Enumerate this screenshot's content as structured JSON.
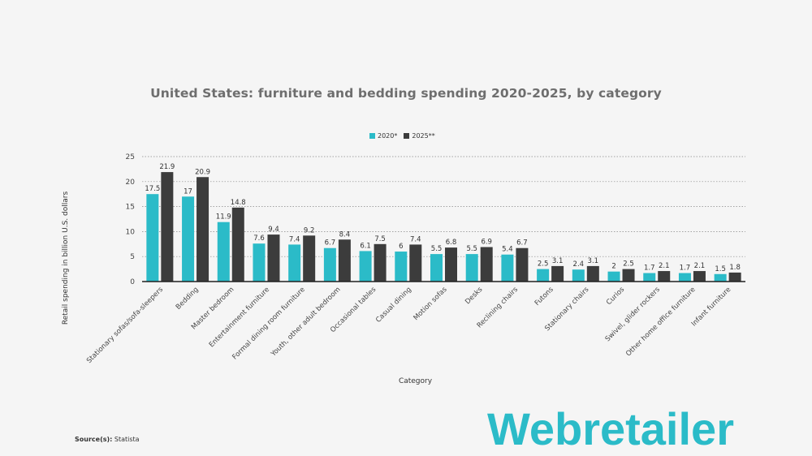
{
  "title": "United States: furniture and bedding spending 2020-2025, by category",
  "legend": [
    "2020*",
    "2025**"
  ],
  "source_label": "Source(s):",
  "source_value": "Statista",
  "logo_text": "Webretailer",
  "colors": {
    "series1": "#2bbbc8",
    "series2": "#3c3c3c",
    "logo": "#2bbbc8"
  },
  "chart_data": {
    "type": "bar",
    "title": "United States: furniture and bedding spending 2020-2025, by category",
    "xlabel": "Category",
    "ylabel": "Retail spending in billion U.S. dollars",
    "ylim": [
      0,
      25
    ],
    "yticks": [
      0,
      5,
      10,
      15,
      20,
      25
    ],
    "grid": true,
    "legend_position": "top-center",
    "categories": [
      "Stationary sofas/sofa-sleepers",
      "Bedding",
      "Master bedroom",
      "Entertainment furniture",
      "Formal dining room furniture",
      "Youth, other adult bedroom",
      "Occasional tables",
      "Casual dining",
      "Motion sofas",
      "Desks",
      "Reclining chairs",
      "Futons",
      "Stationary chairs",
      "Curios",
      "Swivel, glider rockers",
      "Other home office furniture",
      "Infant furniture"
    ],
    "series": [
      {
        "name": "2020*",
        "values": [
          17.5,
          17,
          11.9,
          7.6,
          7.4,
          6.7,
          6.1,
          6,
          5.5,
          5.5,
          5.4,
          2.5,
          2.4,
          2,
          1.7,
          1.7,
          1.5
        ]
      },
      {
        "name": "2025**",
        "values": [
          21.9,
          20.9,
          14.8,
          9.4,
          9.2,
          8.4,
          7.5,
          7.4,
          6.8,
          6.9,
          6.7,
          3.1,
          3.1,
          2.5,
          2.1,
          2.1,
          1.8
        ]
      }
    ]
  }
}
